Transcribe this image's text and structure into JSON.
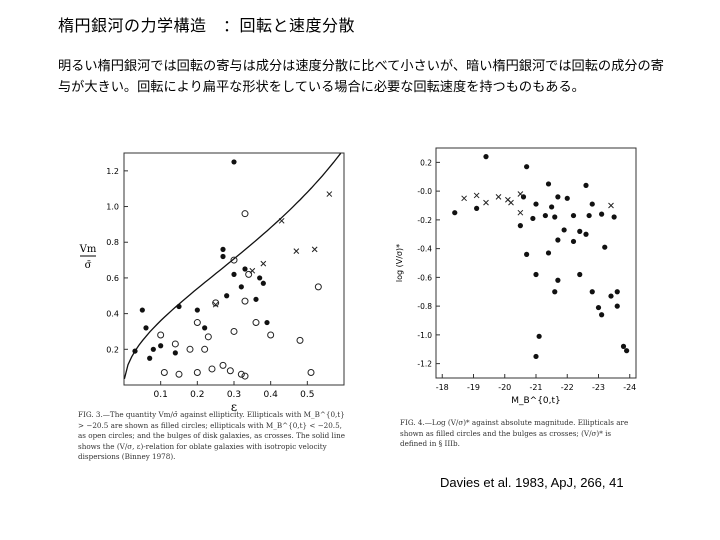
{
  "slide": {
    "title": "楕円銀河の力学構造　：回転と速度分散",
    "body": "明るい楕円銀河では回転の寄与は成分は速度分散に比べて小さいが、暗い楕円銀河では回転の成分の寄与が大きい。回転により扁平な形状をしている場合に必要な回転速度を持つものもある。",
    "citation": "Davies et al. 1983, ApJ, 266, 41"
  },
  "figures": {
    "fig3_caption": "FIG. 3.—The quantity Vm/σ̄ against ellipticity. Ellipticals with M_B^{0,t} > −20.5 are shown as filled circles; ellipticals with M_B^{0,t} < −20.5, as open circles; and the bulges of disk galaxies, as crosses. The solid line shows the (V/σ, ε)-relation for oblate galaxies with isotropic velocity dispersions (Binney 1978).",
    "fig4_caption": "FIG. 4.—Log (V/σ)* against absolute magnitude. Ellipticals are shown as filled circles and the bulges as crosses; (V/σ)* is defined in § IIIb."
  },
  "chart_data": [
    {
      "type": "scatter",
      "title": "",
      "xlabel": "ε",
      "ylabel": "Vm / σ̄",
      "xlim": [
        0,
        0.6
      ],
      "ylim": [
        0,
        1.3
      ],
      "xticks": [
        "0.1",
        "0.2",
        "0.3",
        "0.4",
        "0.5"
      ],
      "yticks": [
        "0.2",
        "0.4",
        "0.6",
        "0.8",
        "1.0",
        "1.2"
      ],
      "series": [
        {
          "marker": "filled-circle",
          "points": [
            [
              0.3,
              1.25
            ],
            [
              0.27,
              0.76
            ],
            [
              0.27,
              0.72
            ],
            [
              0.3,
              0.62
            ],
            [
              0.33,
              0.65
            ],
            [
              0.36,
              0.48
            ],
            [
              0.38,
              0.57
            ],
            [
              0.2,
              0.42
            ],
            [
              0.15,
              0.44
            ],
            [
              0.05,
              0.42
            ],
            [
              0.06,
              0.32
            ],
            [
              0.1,
              0.22
            ],
            [
              0.14,
              0.18
            ],
            [
              0.08,
              0.2
            ],
            [
              0.03,
              0.19
            ],
            [
              0.07,
              0.15
            ],
            [
              0.28,
              0.5
            ],
            [
              0.37,
              0.6
            ],
            [
              0.39,
              0.35
            ],
            [
              0.32,
              0.55
            ],
            [
              0.22,
              0.32
            ]
          ]
        },
        {
          "marker": "open-circle",
          "points": [
            [
              0.33,
              0.96
            ],
            [
              0.3,
              0.7
            ],
            [
              0.34,
              0.62
            ],
            [
              0.25,
              0.46
            ],
            [
              0.33,
              0.47
            ],
            [
              0.36,
              0.35
            ],
            [
              0.4,
              0.28
            ],
            [
              0.3,
              0.3
            ],
            [
              0.2,
              0.35
            ],
            [
              0.23,
              0.27
            ],
            [
              0.14,
              0.23
            ],
            [
              0.1,
              0.28
            ],
            [
              0.22,
              0.2
            ],
            [
              0.18,
              0.2
            ],
            [
              0.15,
              0.06
            ],
            [
              0.2,
              0.07
            ],
            [
              0.24,
              0.09
            ],
            [
              0.29,
              0.08
            ],
            [
              0.32,
              0.06
            ],
            [
              0.33,
              0.05
            ],
            [
              0.53,
              0.55
            ],
            [
              0.48,
              0.25
            ],
            [
              0.51,
              0.07
            ],
            [
              0.27,
              0.11
            ],
            [
              0.11,
              0.07
            ]
          ]
        },
        {
          "marker": "cross",
          "points": [
            [
              0.56,
              1.07
            ],
            [
              0.43,
              0.92
            ],
            [
              0.47,
              0.75
            ],
            [
              0.52,
              0.76
            ],
            [
              0.38,
              0.68
            ],
            [
              0.35,
              0.64
            ],
            [
              0.25,
              0.45
            ]
          ]
        }
      ],
      "curve": "Binney 1978 oblate isotropic relation"
    },
    {
      "type": "scatter",
      "title": "",
      "xlabel": "M_B^{0,t}",
      "ylabel": "log (V/σ)*",
      "xlim": [
        -17.8,
        -24.2
      ],
      "ylim": [
        -1.3,
        0.3
      ],
      "xticks": [
        "-18",
        "-19",
        "-20",
        "-21",
        "-22",
        "-23",
        "-24"
      ],
      "yticks": [
        "0.2",
        "-0.0",
        "-0.2",
        "-0.4",
        "-0.6",
        "-0.8",
        "-1.0",
        "-1.2"
      ],
      "series": [
        {
          "marker": "filled-circle",
          "points": [
            [
              -19.4,
              0.24
            ],
            [
              -20.7,
              0.17
            ],
            [
              -21.4,
              0.05
            ],
            [
              -22.6,
              0.04
            ],
            [
              -21.7,
              -0.04
            ],
            [
              -22.0,
              -0.05
            ],
            [
              -22.8,
              -0.09
            ],
            [
              -20.6,
              -0.04
            ],
            [
              -21.0,
              -0.09
            ],
            [
              -21.3,
              -0.17
            ],
            [
              -21.5,
              -0.11
            ],
            [
              -20.9,
              -0.19
            ],
            [
              -21.6,
              -0.18
            ],
            [
              -22.2,
              -0.17
            ],
            [
              -22.7,
              -0.17
            ],
            [
              -23.1,
              -0.16
            ],
            [
              -23.5,
              -0.18
            ],
            [
              -20.5,
              -0.24
            ],
            [
              -21.9,
              -0.27
            ],
            [
              -22.4,
              -0.28
            ],
            [
              -18.4,
              -0.15
            ],
            [
              -19.1,
              -0.12
            ],
            [
              -21.7,
              -0.34
            ],
            [
              -22.2,
              -0.35
            ],
            [
              -22.6,
              -0.3
            ],
            [
              -20.7,
              -0.44
            ],
            [
              -21.4,
              -0.43
            ],
            [
              -23.2,
              -0.39
            ],
            [
              -21.0,
              -0.58
            ],
            [
              -21.7,
              -0.62
            ],
            [
              -22.4,
              -0.58
            ],
            [
              -21.6,
              -0.7
            ],
            [
              -22.8,
              -0.7
            ],
            [
              -23.4,
              -0.73
            ],
            [
              -23.6,
              -0.8
            ],
            [
              -23.0,
              -0.81
            ],
            [
              -23.1,
              -0.86
            ],
            [
              -21.1,
              -1.01
            ],
            [
              -23.8,
              -1.08
            ],
            [
              -23.9,
              -1.11
            ],
            [
              -21.0,
              -1.15
            ],
            [
              -23.6,
              -0.7
            ]
          ]
        },
        {
          "marker": "cross",
          "points": [
            [
              -19.4,
              -0.08
            ],
            [
              -19.8,
              -0.04
            ],
            [
              -20.1,
              -0.06
            ],
            [
              -20.5,
              -0.02
            ],
            [
              -20.2,
              -0.08
            ],
            [
              -20.5,
              -0.15
            ],
            [
              -23.4,
              -0.1
            ],
            [
              -18.7,
              -0.05
            ],
            [
              -19.1,
              -0.03
            ]
          ]
        }
      ]
    }
  ]
}
